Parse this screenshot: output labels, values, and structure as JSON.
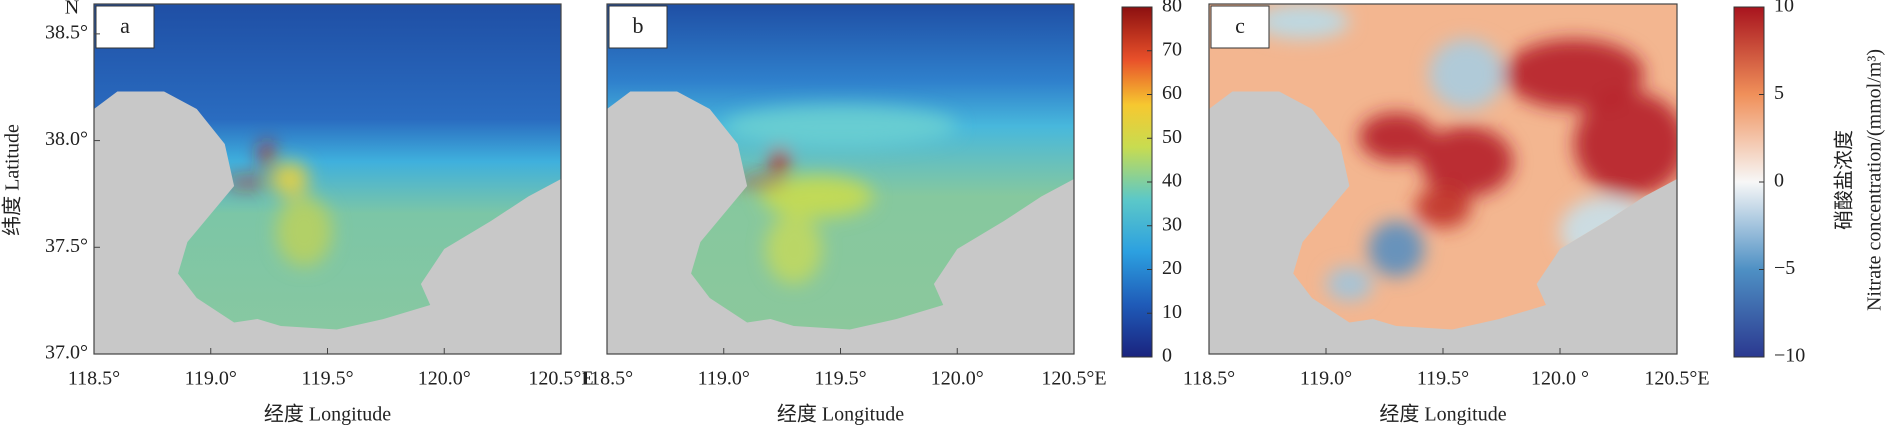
{
  "y_axis": {
    "label": "纬度 Latitude",
    "north": "N",
    "ticks": [
      {
        "value": 37.0,
        "label": "37.0°"
      },
      {
        "value": 37.5,
        "label": "37.5°"
      },
      {
        "value": 38.0,
        "label": "38.0°"
      },
      {
        "value": 38.5,
        "label": "38.5°"
      }
    ]
  },
  "panels": [
    {
      "label": "a",
      "xlim": [
        118.5,
        120.5
      ],
      "ylim": [
        37.0,
        38.64
      ],
      "xlabel": "经度 Longitude",
      "xticks": [
        {
          "value": 118.5,
          "label": "118.5°"
        },
        {
          "value": 119.0,
          "label": "119.0°"
        },
        {
          "value": 119.5,
          "label": "119.5°"
        },
        {
          "value": 120.0,
          "label": "120.0°"
        },
        {
          "value": 120.5,
          "label": "120.5°E"
        }
      ]
    },
    {
      "label": "b",
      "xlim": [
        118.5,
        120.5
      ],
      "ylim": [
        37.0,
        38.64
      ],
      "xlabel": "经度 Longitude",
      "xticks": [
        {
          "value": 118.5,
          "label": "118.5°"
        },
        {
          "value": 119.0,
          "label": "119.0°"
        },
        {
          "value": 119.5,
          "label": "119.5°"
        },
        {
          "value": 120.0,
          "label": "120.0°"
        },
        {
          "value": 120.5,
          "label": "120.5°E"
        }
      ]
    },
    {
      "label": "c",
      "xlim": [
        118.5,
        120.5
      ],
      "ylim": [
        37.0,
        38.64
      ],
      "xlabel": "经度 Longitude",
      "xticks": [
        {
          "value": 118.5,
          "label": "118.5°"
        },
        {
          "value": 119.0,
          "label": "119.0°"
        },
        {
          "value": 119.5,
          "label": "119.5°"
        },
        {
          "value": 120.0,
          "label": "120.0 °"
        },
        {
          "value": 120.5,
          "label": "120.5°E"
        }
      ]
    }
  ],
  "colorbars": [
    {
      "lim": [
        0,
        80
      ],
      "ticks": [
        0,
        10,
        20,
        30,
        40,
        50,
        60,
        70,
        80
      ]
    },
    {
      "lim": [
        -10,
        10
      ],
      "ticks": [
        {
          "value": -10,
          "label": "−10"
        },
        {
          "value": -5,
          "label": "−5"
        },
        0,
        5,
        10
      ],
      "label_cn": "硝酸盐浓度",
      "label": "Nitrate concentration/(mmol/m³)"
    }
  ]
}
